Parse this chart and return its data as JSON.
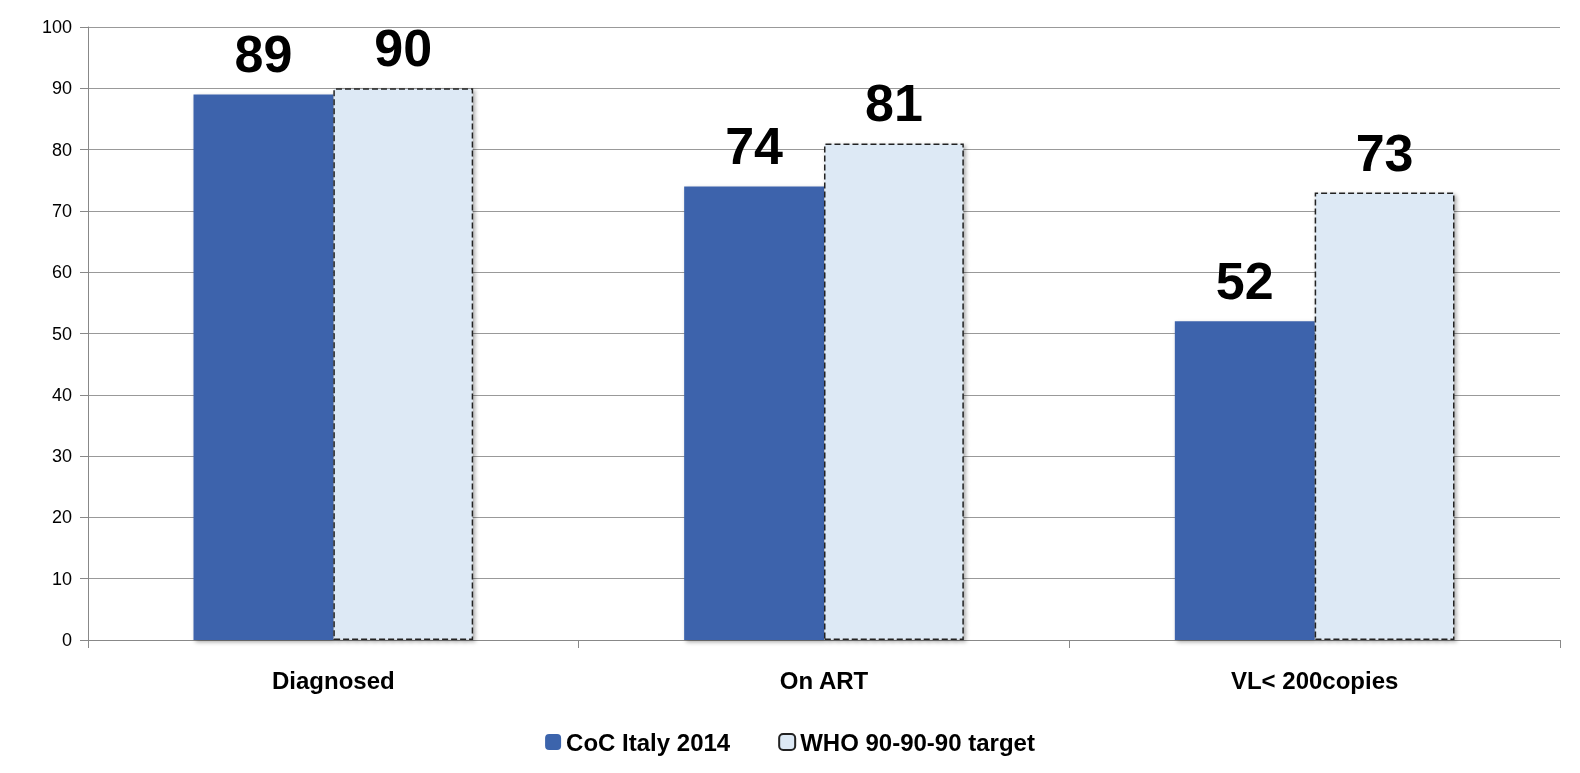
{
  "chart_data": {
    "type": "bar",
    "categories": [
      "Diagnosed",
      "On ART",
      "VL< 200copies"
    ],
    "series": [
      {
        "name": "CoC Italy 2014",
        "color": "#3c64ac",
        "values": [
          89,
          74,
          52
        ]
      },
      {
        "name": "WHO 90-90-90 target",
        "color": "#dde9f5",
        "values": [
          90,
          81,
          73
        ],
        "line_style": "dashed"
      }
    ],
    "ylim": [
      0,
      100
    ],
    "yticks": [
      0,
      10,
      20,
      30,
      40,
      50,
      60,
      70,
      80,
      90,
      100
    ],
    "grid": "y",
    "legend": "bottom",
    "data_labels": true
  }
}
